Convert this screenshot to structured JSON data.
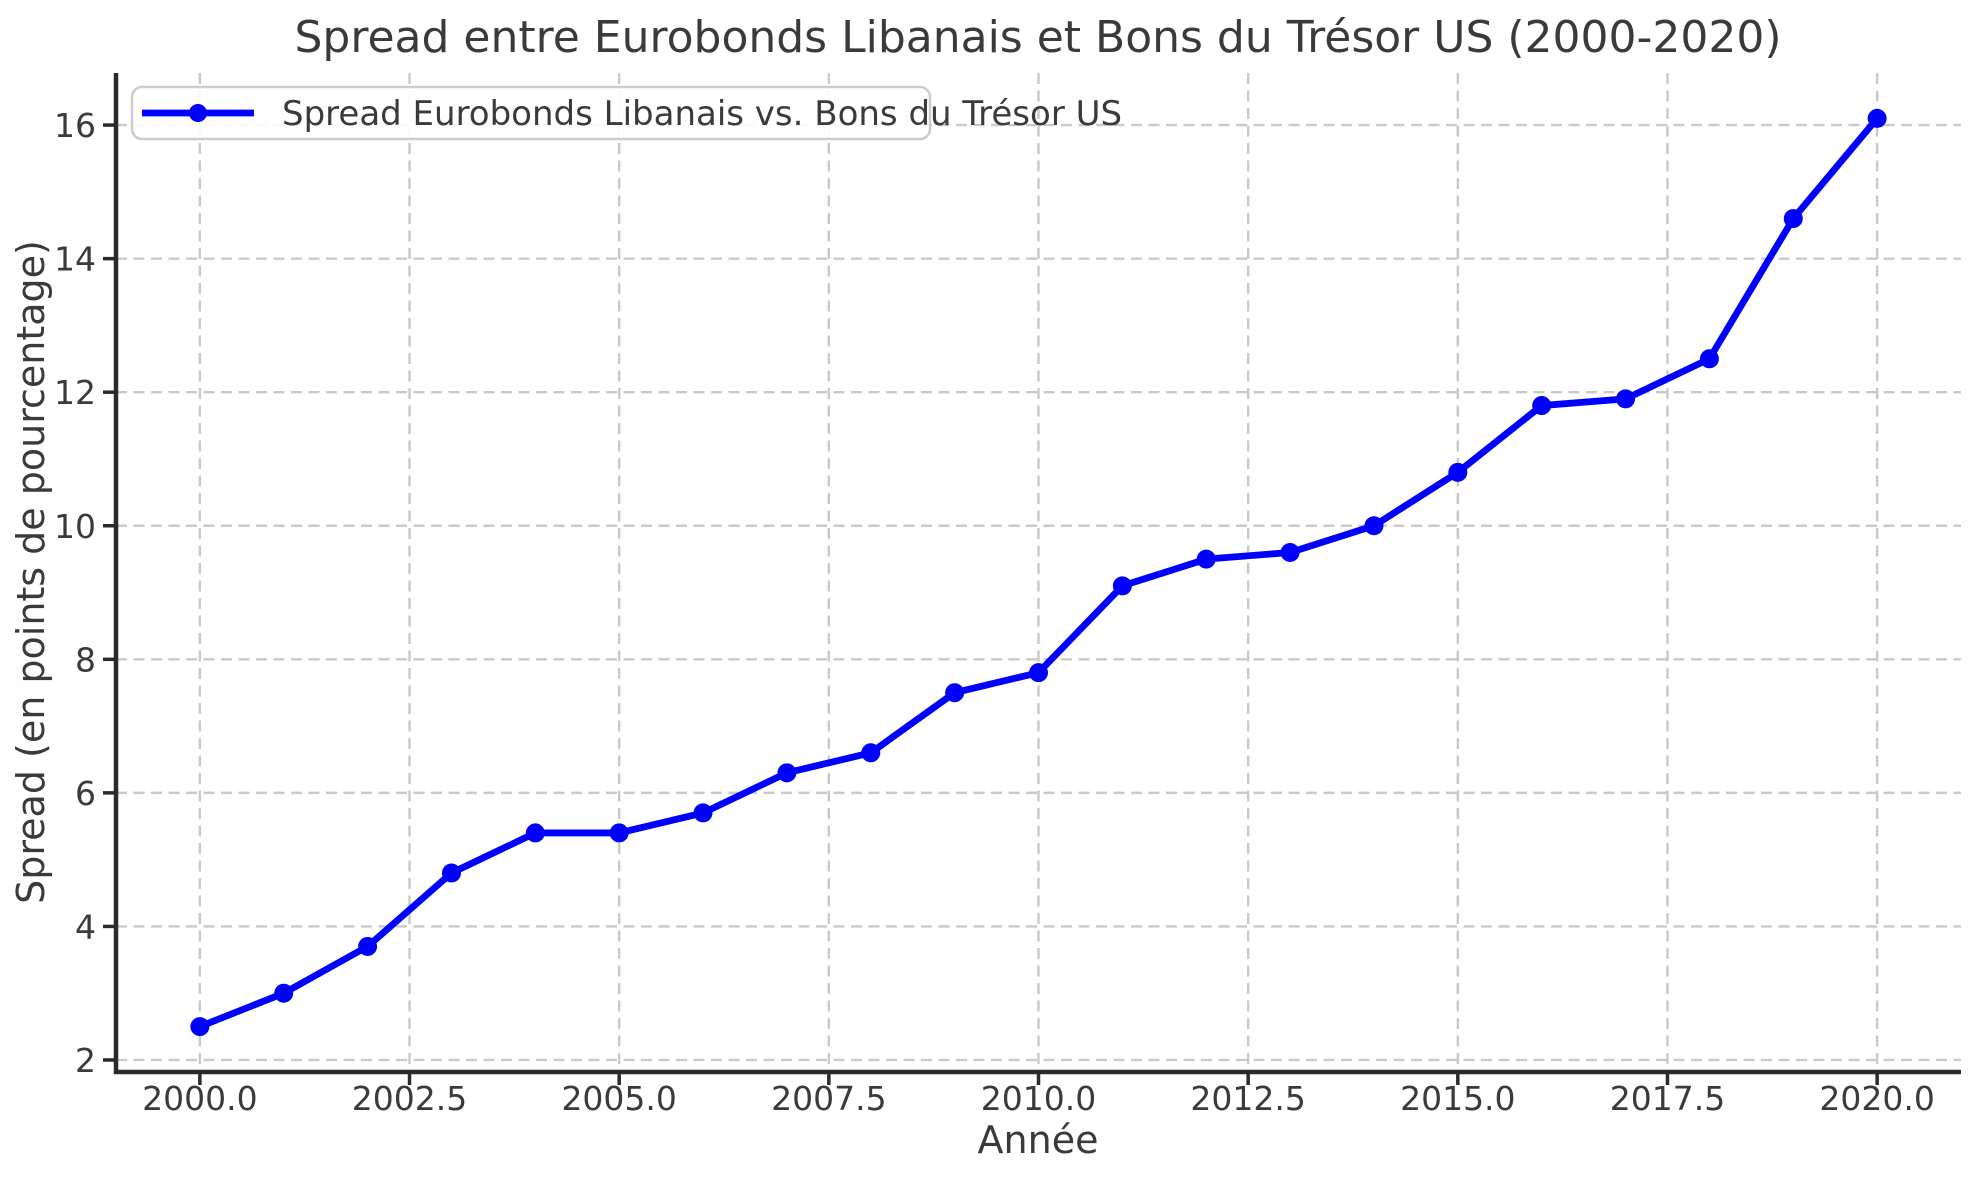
{
  "chart_data": {
    "type": "line",
    "title": "Spread entre Eurobonds Libanais et Bons du Trésor US (2000-2020)",
    "xlabel": "Année",
    "ylabel": "Spread (en points de pourcentage)",
    "grid": true,
    "grid_style": "dashed",
    "legend_position": "upper left",
    "xlim": [
      1999,
      2021
    ],
    "ylim": [
      1.82,
      16.78
    ],
    "x_ticks": [
      2000,
      2002.5,
      2005,
      2007.5,
      2010,
      2012.5,
      2015,
      2017.5,
      2020
    ],
    "x_tick_labels": [
      "2000.0",
      "2002.5",
      "2005.0",
      "2007.5",
      "2010.0",
      "2012.5",
      "2015.0",
      "2017.5",
      "2020.0"
    ],
    "y_ticks": [
      2,
      4,
      6,
      8,
      10,
      12,
      14,
      16
    ],
    "y_tick_labels": [
      "2",
      "4",
      "6",
      "8",
      "10",
      "12",
      "14",
      "16"
    ],
    "series": [
      {
        "name": "Spread Eurobonds Libanais vs. Bons du Trésor US",
        "color": "#0000ff",
        "marker": "circle",
        "x": [
          2000,
          2001,
          2002,
          2003,
          2004,
          2005,
          2006,
          2007,
          2008,
          2009,
          2010,
          2011,
          2012,
          2013,
          2014,
          2015,
          2016,
          2017,
          2018,
          2019,
          2020
        ],
        "y": [
          2.5,
          3.0,
          3.7,
          4.8,
          5.4,
          5.4,
          5.7,
          6.3,
          6.6,
          7.5,
          7.8,
          9.1,
          9.5,
          9.6,
          10.0,
          10.8,
          11.8,
          11.9,
          12.5,
          14.6,
          16.1
        ]
      }
    ],
    "colors": {
      "line": "#0000ff",
      "text": "#3a3a3a",
      "grid": "#c9c9c9",
      "spine": "#2a2a2a",
      "legend_border": "#cccccc",
      "background": "#ffffff"
    }
  }
}
